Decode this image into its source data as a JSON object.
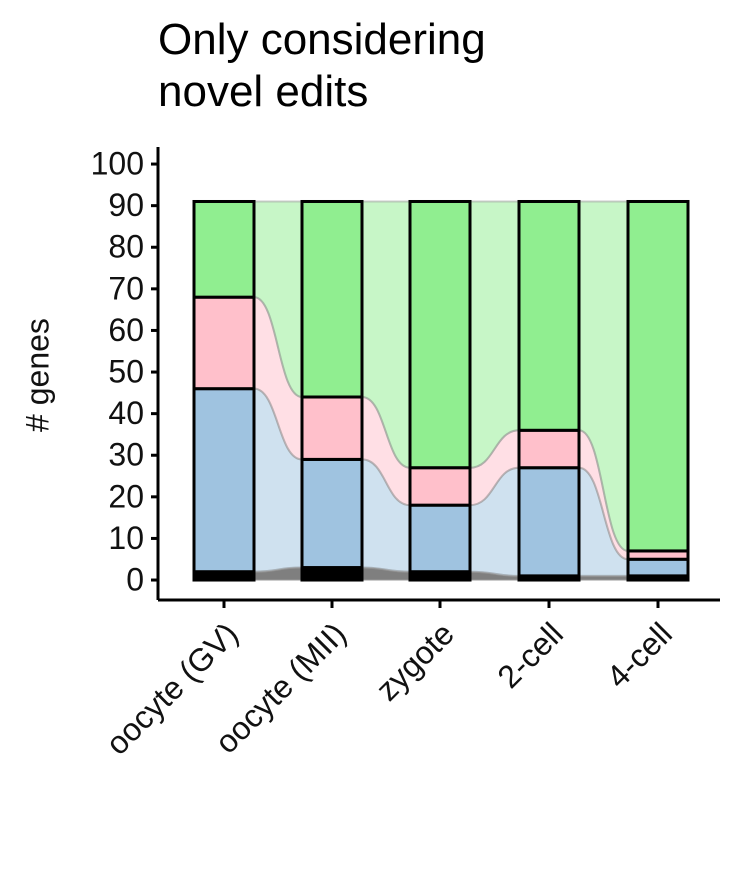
{
  "chart_data": {
    "type": "alluvial",
    "title": "Only considering novel edits",
    "ylabel": "# genes",
    "categories": [
      "oocyte (GV)",
      "oocyte (MII)",
      "zygote",
      "2-cell",
      "4-cell"
    ],
    "series": [
      {
        "color": "#000000",
        "values": [
          2,
          3,
          2,
          1,
          1
        ]
      },
      {
        "color": "#9fc3e0",
        "values": [
          44,
          26,
          16,
          26,
          4
        ]
      },
      {
        "color": "#ffc0cb",
        "values": [
          22,
          15,
          9,
          9,
          2
        ]
      },
      {
        "color": "#90ee90",
        "values": [
          23,
          47,
          64,
          55,
          84
        ]
      }
    ],
    "ylim": [
      -4.8,
      104.1
    ],
    "yticks": [
      0,
      10,
      20,
      30,
      40,
      50,
      60,
      70,
      80,
      90,
      100
    ]
  }
}
